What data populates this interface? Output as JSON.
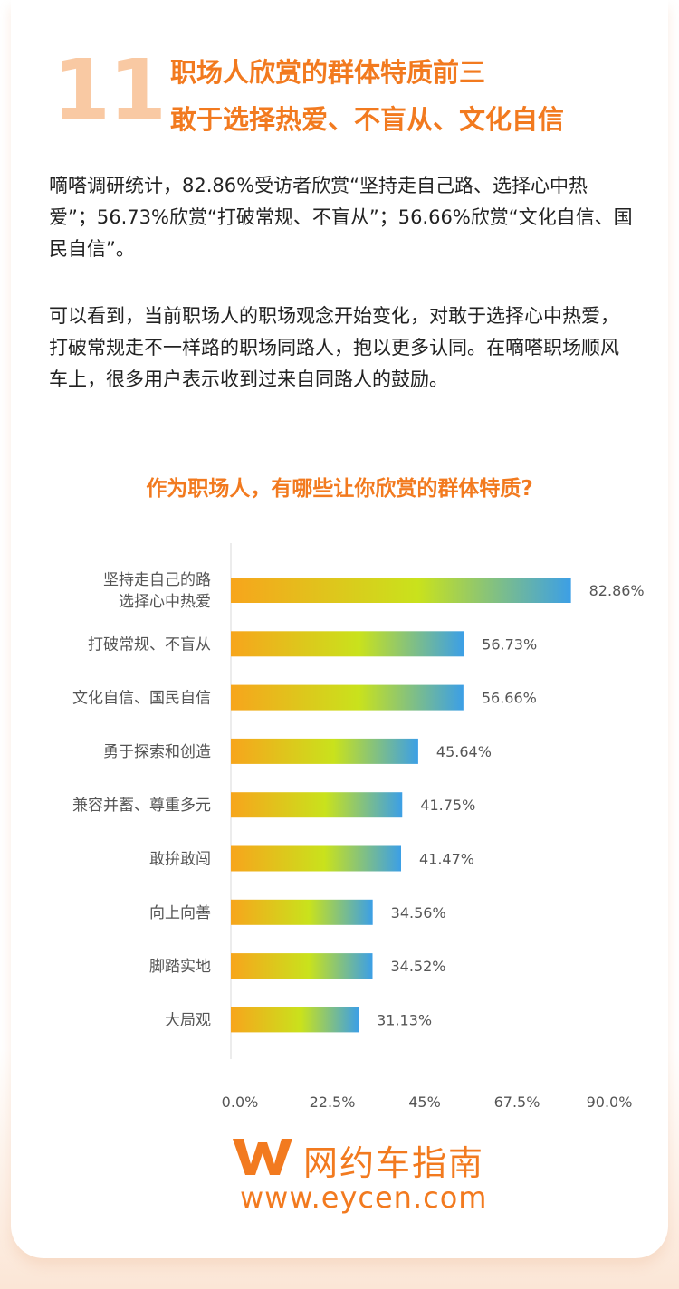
{
  "section_number": "11",
  "headline": {
    "line1": "职场人欣赏的群体特质前三",
    "line2": "敢于选择热爱、不盲从、文化自信"
  },
  "paragraphs": [
    "嘀嗒调研统计，82.86%受访者欣赏“坚持走自己路、选择心中热爱”；56.73%欣赏“打破常规、不盲从”；56.66%欣赏“文化自信、国民自信”。",
    "可以看到，当前职场人的职场观念开始变化，对敢于选择心中热爱，打破常规走不一样路的职场同路人，抱以更多认同。在嘀嗒职场顺风车上，很多用户表示收到过来自同路人的鼓励。"
  ],
  "colors": {
    "accent": "#f27a1f",
    "number": "#f9c9a3",
    "bar_start": "#f7a51c",
    "bar_mid": "#c9e21c",
    "bar_end": "#3c9fe6",
    "axis": "#d8d8d8",
    "label": "#555555"
  },
  "chart_data": {
    "type": "bar",
    "orientation": "horizontal",
    "title": "作为职场人，有哪些让你欣赏的群体特质?",
    "categories": [
      [
        "坚持走自己的路",
        "选择心中热爱"
      ],
      [
        "打破常规、不盲从"
      ],
      [
        "文化自信、国民自信"
      ],
      [
        "勇于探索和创造"
      ],
      [
        "兼容并蓄、尊重多元"
      ],
      [
        "敢拚敢闯"
      ],
      [
        "向上向善"
      ],
      [
        "脚踏实地"
      ],
      [
        "大局观"
      ]
    ],
    "values": [
      82.86,
      56.73,
      56.66,
      45.64,
      41.75,
      41.47,
      34.56,
      34.52,
      31.13
    ],
    "value_labels": [
      "82.86%",
      "56.73%",
      "56.66%",
      "45.64%",
      "41.75%",
      "41.47%",
      "34.56%",
      "34.52%",
      "31.13%"
    ],
    "xlim": [
      0,
      90
    ],
    "xticks": [
      0,
      22.5,
      45,
      67.5,
      90
    ],
    "xtick_labels": [
      "0.0%",
      "22.5%",
      "45%",
      "67.5%",
      "90.0%"
    ],
    "grid": false,
    "legend": "none"
  },
  "watermark": {
    "logo_letter": "W",
    "text": "网约车指南",
    "url": "www.eycen.com"
  }
}
